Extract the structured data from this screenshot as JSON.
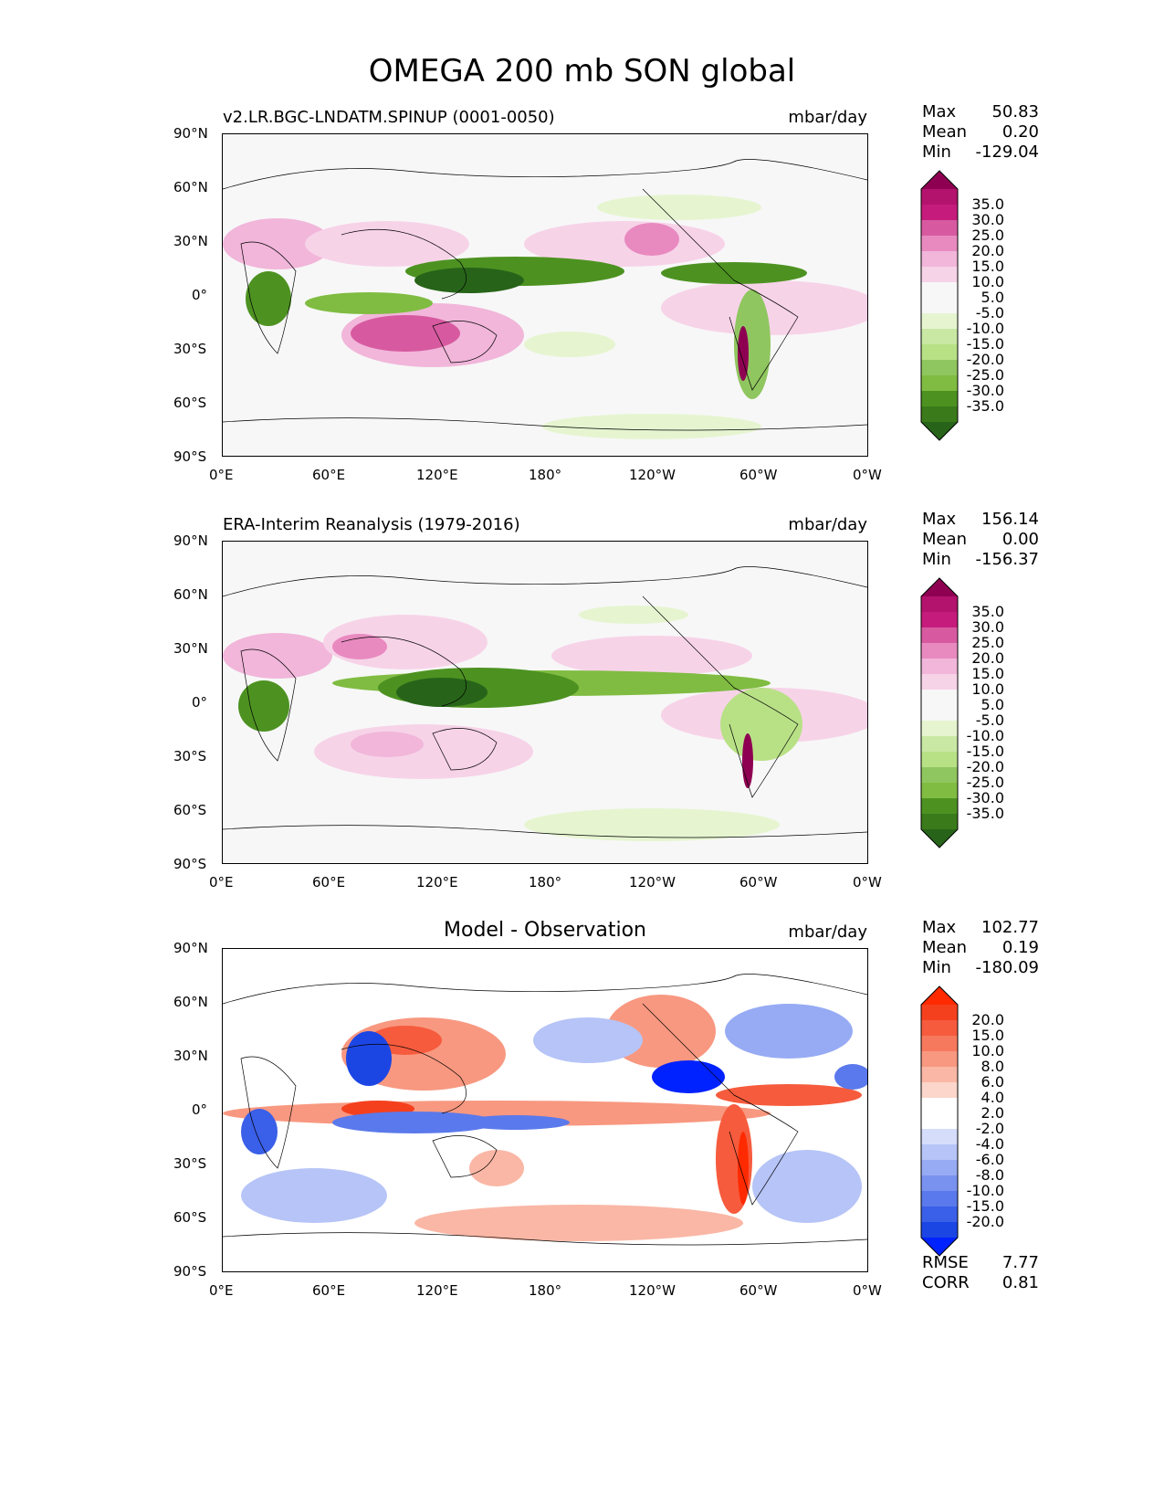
{
  "figure": {
    "title": "OMEGA 200 mb SON global"
  },
  "axes": {
    "lat_ticks": [
      "90°N",
      "60°N",
      "30°N",
      "0°",
      "30°S",
      "60°S",
      "90°S"
    ],
    "lon_ticks": [
      "0°E",
      "60°E",
      "120°E",
      "180°",
      "120°W",
      "60°W",
      "0°W"
    ]
  },
  "panels": [
    {
      "title": "v2.LR.BGC-LNDATM.SPINUP (0001-0050)",
      "units": "mbar/day",
      "stats": [
        {
          "label": "Max",
          "value": "50.83"
        },
        {
          "label": "Mean",
          "value": "0.20"
        },
        {
          "label": "Min",
          "value": "-129.04"
        }
      ],
      "colorbar": {
        "levels": [
          "35.0",
          "30.0",
          "25.0",
          "20.0",
          "15.0",
          "10.0",
          "5.0",
          "-5.0",
          "-10.0",
          "-15.0",
          "-20.0",
          "-25.0",
          "-30.0",
          "-35.0"
        ],
        "colors": [
          "#8e0152",
          "#b3126d",
          "#c51b7d",
          "#d75aa0",
          "#e88ac0",
          "#f1b6da",
          "#f7d3e8",
          "#f7f7f7",
          "#f7f7f7",
          "#e6f5d0",
          "#c8e8a4",
          "#b8e186",
          "#8fc65f",
          "#7fbc41",
          "#4d9221",
          "#3a7a1a",
          "#276419"
        ]
      }
    },
    {
      "title": "ERA-Interim Reanalysis (1979-2016)",
      "units": "mbar/day",
      "stats": [
        {
          "label": "Max",
          "value": "156.14"
        },
        {
          "label": "Mean",
          "value": "0.00"
        },
        {
          "label": "Min",
          "value": "-156.37"
        }
      ],
      "colorbar": {
        "levels": [
          "35.0",
          "30.0",
          "25.0",
          "20.0",
          "15.0",
          "10.0",
          "5.0",
          "-5.0",
          "-10.0",
          "-15.0",
          "-20.0",
          "-25.0",
          "-30.0",
          "-35.0"
        ],
        "colors": [
          "#8e0152",
          "#b3126d",
          "#c51b7d",
          "#d75aa0",
          "#e88ac0",
          "#f1b6da",
          "#f7d3e8",
          "#f7f7f7",
          "#f7f7f7",
          "#e6f5d0",
          "#c8e8a4",
          "#b8e186",
          "#8fc65f",
          "#7fbc41",
          "#4d9221",
          "#3a7a1a",
          "#276419"
        ]
      }
    },
    {
      "title": "Model - Observation",
      "units": "mbar/day",
      "stats": [
        {
          "label": "Max",
          "value": "102.77"
        },
        {
          "label": "Mean",
          "value": "0.19"
        },
        {
          "label": "Min",
          "value": "-180.09"
        }
      ],
      "extra_stats": [
        {
          "label": "RMSE",
          "value": "7.77"
        },
        {
          "label": "CORR",
          "value": "0.81"
        }
      ],
      "colorbar": {
        "levels": [
          "20.0",
          "15.0",
          "10.0",
          "8.0",
          "6.0",
          "4.0",
          "2.0",
          "-2.0",
          "-4.0",
          "-6.0",
          "-8.0",
          "-10.0",
          "-15.0",
          "-20.0"
        ],
        "colors": [
          "#ff2a00",
          "#f5401e",
          "#f65b3d",
          "#f7795d",
          "#f89880",
          "#fab7a5",
          "#fcd6cb",
          "#ffffff",
          "#ffffff",
          "#d5ddfb",
          "#b6c4f7",
          "#97abf4",
          "#7992f0",
          "#5a79ec",
          "#3a5fe8",
          "#1c46e4",
          "#0022ff"
        ]
      }
    }
  ]
}
